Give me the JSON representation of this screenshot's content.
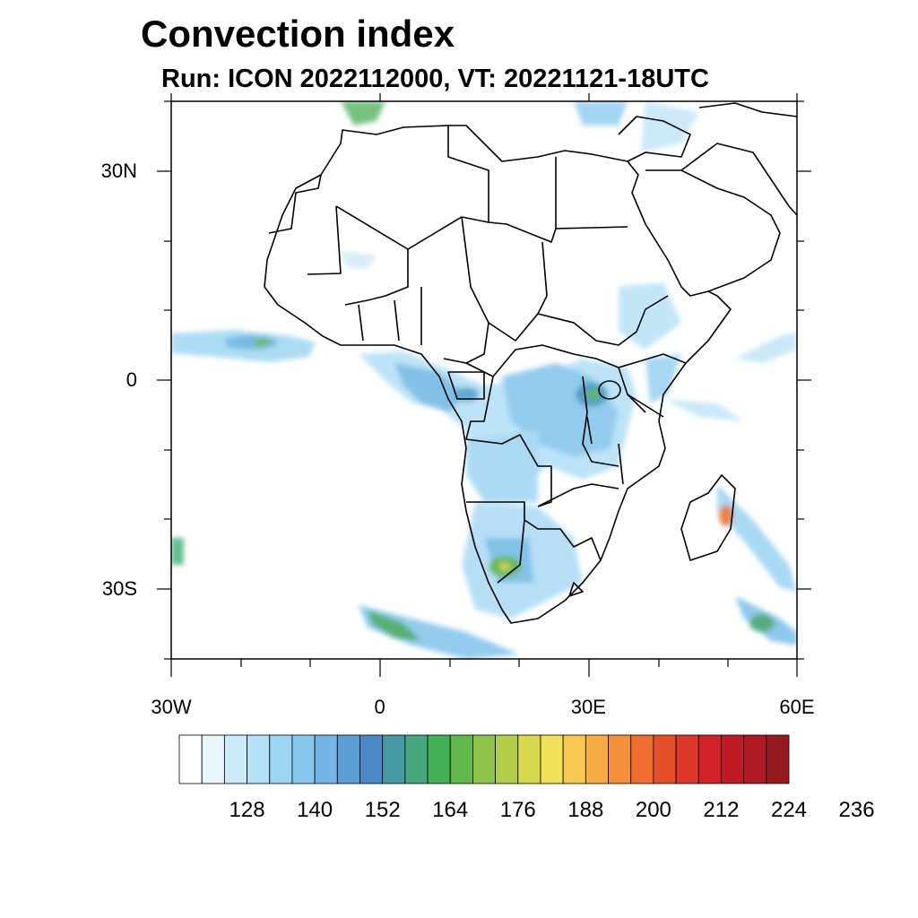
{
  "title": "Convection index",
  "subtitle": "Run: ICON 2022112000,  VT: 20221121-18UTC",
  "map": {
    "lon_range": [
      -30,
      60
    ],
    "lat_range": [
      -40,
      40
    ],
    "lat_ticks": [
      {
        "value": 30,
        "label": "30N"
      },
      {
        "value": 0,
        "label": "0"
      },
      {
        "value": -30,
        "label": "30S"
      }
    ],
    "lon_ticks": [
      {
        "value": -30,
        "label": "30W"
      },
      {
        "value": 0,
        "label": "0"
      },
      {
        "value": 30,
        "label": "30E"
      },
      {
        "value": 60,
        "label": "60E"
      }
    ]
  },
  "colorbar": {
    "colors": [
      "#ffffff",
      "#e8f5fc",
      "#cdeaf8",
      "#b4e0f6",
      "#9cd6f4",
      "#87c8ee",
      "#75b4e4",
      "#5d9dd6",
      "#4a88c6",
      "#4899a6",
      "#47a77c",
      "#44b056",
      "#60b84b",
      "#8fc34a",
      "#b2ce4a",
      "#d7d84d",
      "#f0e05a",
      "#f8c850",
      "#f7ab45",
      "#f48f3b",
      "#ee6f31",
      "#e5502b",
      "#dc3729",
      "#d02228",
      "#c01a27",
      "#ad1a24",
      "#951b20"
    ],
    "labels": [
      "128",
      "140",
      "152",
      "164",
      "176",
      "188",
      "200",
      "212",
      "224",
      "236"
    ]
  }
}
